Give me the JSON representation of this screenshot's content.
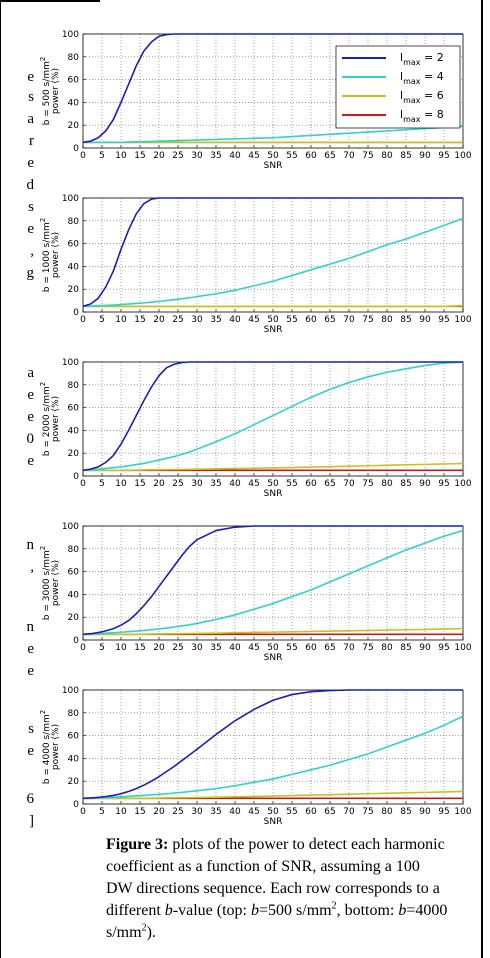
{
  "margin_fragments": [
    "e",
    "s",
    "a",
    "r",
    "e",
    "d",
    "s",
    "e",
    ",",
    "g",
    "a",
    "e",
    "e",
    "0",
    "e",
    "n",
    ",",
    "n",
    "e",
    "e",
    "s",
    "e",
    "6",
    "]"
  ],
  "caption": {
    "label": "Figure 3:",
    "line1": " plots of the power to detect each harmonic",
    "line2": "coefficient as a function of SNR, assuming a 100",
    "line3": "DW directions sequence. Each row corresponds to a",
    "line4a": "different ",
    "line4b": "b",
    "line4c": "-value (top: ",
    "line4d": "b",
    "line4e": "=500 s/mm",
    "line4f": "2",
    "line4g": ", bottom: ",
    "line4h": "b",
    "line4i": "=4000",
    "line5a": "s/mm",
    "line5b": "2",
    "line5c": ")."
  },
  "colors": {
    "lmax2": "#1a1fb5",
    "lmax4": "#2fd1cd",
    "lmax6": "#c9c31e",
    "lmax8": "#c21d1d",
    "grid": "#666666"
  },
  "chart_data": [
    {
      "type": "line",
      "ylabel_line1": "b = 500 s/mm",
      "ylabel_sup": "2",
      "ylabel_line2": "power (%)",
      "xlabel": "SNR",
      "xlim": [
        0,
        100
      ],
      "ylim": [
        0,
        100
      ],
      "xticks": [
        0,
        5,
        10,
        15,
        20,
        25,
        30,
        35,
        40,
        45,
        50,
        55,
        60,
        65,
        70,
        75,
        80,
        85,
        90,
        95,
        100
      ],
      "yticks": [
        0,
        20,
        40,
        60,
        80,
        100
      ],
      "grid": true,
      "legend": {
        "placement": "top-right",
        "entries": [
          {
            "base": "l",
            "sub": "max",
            "rest": " = 2"
          },
          {
            "base": "l",
            "sub": "max",
            "rest": " = 4"
          },
          {
            "base": "l",
            "sub": "max",
            "rest": " = 6"
          },
          {
            "base": "l",
            "sub": "max",
            "rest": " = 8"
          }
        ]
      },
      "x": [
        0,
        2,
        4,
        6,
        8,
        10,
        12,
        14,
        16,
        18,
        20,
        22,
        24,
        26,
        28,
        30,
        35,
        40,
        45,
        50,
        55,
        60,
        65,
        70,
        75,
        80,
        85,
        90,
        95,
        100
      ],
      "series": [
        {
          "key": "lmax2",
          "values": [
            5,
            6,
            9,
            15,
            25,
            40,
            56,
            72,
            85,
            93,
            98,
            99.5,
            100,
            100,
            100,
            100,
            100,
            100,
            100,
            100,
            100,
            100,
            100,
            100,
            100,
            100,
            100,
            100,
            100,
            100
          ]
        },
        {
          "key": "lmax4",
          "values": [
            5,
            5,
            5,
            5,
            5,
            5,
            5.2,
            5.4,
            5.6,
            5.8,
            6,
            6.2,
            6.4,
            6.6,
            6.8,
            7,
            7.5,
            8,
            8.5,
            9,
            10,
            11,
            12,
            13,
            14,
            15,
            16,
            17,
            18,
            19
          ]
        },
        {
          "key": "lmax6",
          "values": [
            5,
            5,
            5,
            5,
            5,
            5,
            5,
            5,
            5,
            5,
            5,
            5,
            5,
            5,
            5,
            5,
            5,
            5,
            5,
            5,
            5,
            5,
            5,
            5,
            5,
            5,
            5,
            5,
            5,
            5
          ]
        },
        {
          "key": "lmax8",
          "values": [
            5,
            5,
            5,
            5,
            5,
            5,
            5,
            5,
            5,
            5,
            5,
            5,
            5,
            5,
            5,
            5,
            5,
            5,
            5,
            5,
            5,
            5,
            5,
            5,
            5,
            5,
            5,
            5,
            5,
            5
          ]
        }
      ]
    },
    {
      "type": "line",
      "ylabel_line1": "b = 1000 s/mm",
      "ylabel_sup": "2",
      "ylabel_line2": "power (%)",
      "xlabel": "SNR",
      "xlim": [
        0,
        100
      ],
      "ylim": [
        0,
        100
      ],
      "xticks": [
        0,
        5,
        10,
        15,
        20,
        25,
        30,
        35,
        40,
        45,
        50,
        55,
        60,
        65,
        70,
        75,
        80,
        85,
        90,
        95,
        100
      ],
      "yticks": [
        0,
        20,
        40,
        60,
        80,
        100
      ],
      "grid": true,
      "x": [
        0,
        2,
        4,
        6,
        8,
        10,
        12,
        14,
        16,
        18,
        20,
        22,
        24,
        26,
        28,
        30,
        35,
        40,
        45,
        50,
        55,
        60,
        65,
        70,
        75,
        80,
        85,
        90,
        95,
        100
      ],
      "series": [
        {
          "key": "lmax2",
          "values": [
            5,
            7,
            12,
            22,
            36,
            55,
            72,
            86,
            95,
            99,
            100,
            100,
            100,
            100,
            100,
            100,
            100,
            100,
            100,
            100,
            100,
            100,
            100,
            100,
            100,
            100,
            100,
            100,
            100,
            100
          ]
        },
        {
          "key": "lmax4",
          "values": [
            5,
            5.2,
            5.5,
            5.8,
            6.1,
            6.5,
            7,
            7.5,
            8,
            8.6,
            9.2,
            10,
            10.8,
            11.6,
            12.5,
            13.5,
            16,
            19,
            23,
            27,
            32,
            37,
            42,
            47,
            53,
            59,
            64,
            70,
            76,
            82
          ]
        },
        {
          "key": "lmax6",
          "values": [
            5,
            5,
            5,
            5,
            5,
            5,
            5,
            5,
            5,
            5,
            5,
            5,
            5,
            5,
            5,
            5,
            5,
            5,
            5,
            5,
            5,
            5,
            5,
            5,
            5,
            5,
            5,
            5,
            5,
            5.5
          ]
        },
        {
          "key": "lmax8",
          "values": [
            5,
            5,
            5,
            5,
            5,
            5,
            5,
            5,
            5,
            5,
            5,
            5,
            5,
            5,
            5,
            5,
            5,
            5,
            5,
            5,
            5,
            5,
            5,
            5,
            5,
            5,
            5,
            5,
            5,
            5
          ]
        }
      ]
    },
    {
      "type": "line",
      "ylabel_line1": "b = 2000 s/mm",
      "ylabel_sup": "2",
      "ylabel_line2": "power (%)",
      "xlabel": "SNR",
      "xlim": [
        0,
        100
      ],
      "ylim": [
        0,
        100
      ],
      "xticks": [
        0,
        5,
        10,
        15,
        20,
        25,
        30,
        35,
        40,
        45,
        50,
        55,
        60,
        65,
        70,
        75,
        80,
        85,
        90,
        95,
        100
      ],
      "yticks": [
        0,
        20,
        40,
        60,
        80,
        100
      ],
      "grid": true,
      "x": [
        0,
        2,
        4,
        6,
        8,
        10,
        12,
        14,
        16,
        18,
        20,
        22,
        24,
        26,
        28,
        30,
        35,
        40,
        45,
        50,
        55,
        60,
        65,
        70,
        75,
        80,
        85,
        90,
        95,
        100
      ],
      "series": [
        {
          "key": "lmax2",
          "values": [
            5,
            6,
            8,
            12,
            18,
            28,
            40,
            53,
            66,
            78,
            88,
            95,
            98,
            99.5,
            100,
            100,
            100,
            100,
            100,
            100,
            100,
            100,
            100,
            100,
            100,
            100,
            100,
            100,
            100,
            100
          ]
        },
        {
          "key": "lmax4",
          "values": [
            5,
            5.5,
            6,
            6.6,
            7.3,
            8,
            9,
            10,
            11,
            12.5,
            14,
            15.5,
            17,
            19,
            21,
            23.5,
            30,
            37,
            45,
            53,
            61,
            69,
            76,
            82,
            87,
            91,
            94,
            97,
            99,
            100
          ]
        },
        {
          "key": "lmax6",
          "values": [
            5,
            5,
            5,
            5,
            5,
            5,
            5.1,
            5.2,
            5.3,
            5.4,
            5.5,
            5.6,
            5.7,
            5.8,
            5.9,
            6,
            6.2,
            6.5,
            6.8,
            7.1,
            7.4,
            7.8,
            8.2,
            8.6,
            9,
            9.4,
            9.8,
            10.2,
            10.6,
            11
          ]
        },
        {
          "key": "lmax8",
          "values": [
            5,
            5,
            5,
            5,
            5,
            5,
            5,
            5,
            5,
            5,
            5,
            5,
            5,
            5,
            5,
            5,
            5,
            5,
            5,
            5,
            5,
            5,
            5,
            5,
            5,
            5,
            5,
            5,
            5,
            5
          ]
        }
      ]
    },
    {
      "type": "line",
      "ylabel_line1": "b = 3000 s/mm",
      "ylabel_sup": "2",
      "ylabel_line2": "power (%)",
      "xlabel": "SNR",
      "xlim": [
        0,
        100
      ],
      "ylim": [
        0,
        100
      ],
      "xticks": [
        0,
        5,
        10,
        15,
        20,
        25,
        30,
        35,
        40,
        45,
        50,
        55,
        60,
        65,
        70,
        75,
        80,
        85,
        90,
        95,
        100
      ],
      "yticks": [
        0,
        20,
        40,
        60,
        80,
        100
      ],
      "grid": true,
      "x": [
        0,
        2,
        4,
        6,
        8,
        10,
        12,
        14,
        16,
        18,
        20,
        22,
        24,
        26,
        28,
        30,
        35,
        40,
        45,
        50,
        55,
        60,
        65,
        70,
        75,
        80,
        85,
        90,
        95,
        100
      ],
      "series": [
        {
          "key": "lmax2",
          "values": [
            5,
            5.5,
            6.5,
            8,
            10,
            13,
            17,
            23,
            30,
            38,
            47,
            56,
            65,
            74,
            82,
            88,
            96,
            99,
            100,
            100,
            100,
            100,
            100,
            100,
            100,
            100,
            100,
            100,
            100,
            100
          ]
        },
        {
          "key": "lmax4",
          "values": [
            5,
            5.3,
            5.6,
            6,
            6.4,
            6.8,
            7.3,
            7.8,
            8.4,
            9,
            9.7,
            10.5,
            11.4,
            12.3,
            13.3,
            14.5,
            18,
            22,
            27,
            32,
            38,
            44,
            51,
            58,
            65,
            72,
            79,
            85,
            91,
            96
          ]
        },
        {
          "key": "lmax6",
          "values": [
            5,
            5,
            5,
            5,
            5,
            5,
            5,
            5,
            5.1,
            5.2,
            5.3,
            5.4,
            5.5,
            5.6,
            5.7,
            5.8,
            6,
            6.3,
            6.6,
            6.9,
            7.2,
            7.5,
            7.8,
            8.1,
            8.4,
            8.7,
            9,
            9.3,
            9.6,
            10
          ]
        },
        {
          "key": "lmax8",
          "values": [
            5,
            5,
            5,
            5,
            5,
            5,
            5,
            5,
            5,
            5,
            5,
            5,
            5,
            5,
            5,
            5,
            5,
            5,
            5,
            5,
            5,
            5,
            5,
            5,
            5,
            5,
            5,
            5,
            5,
            5
          ]
        }
      ]
    },
    {
      "type": "line",
      "ylabel_line1": "b = 4000 s/mm",
      "ylabel_sup": "2",
      "ylabel_line2": "power (%)",
      "xlabel": "SNR",
      "xlim": [
        0,
        100
      ],
      "ylim": [
        0,
        100
      ],
      "xticks": [
        0,
        5,
        10,
        15,
        20,
        25,
        30,
        35,
        40,
        45,
        50,
        55,
        60,
        65,
        70,
        75,
        80,
        85,
        90,
        95,
        100
      ],
      "yticks": [
        0,
        20,
        40,
        60,
        80,
        100
      ],
      "grid": true,
      "x": [
        0,
        2,
        4,
        6,
        8,
        10,
        12,
        14,
        16,
        18,
        20,
        22,
        24,
        26,
        28,
        30,
        35,
        40,
        45,
        50,
        55,
        60,
        65,
        70,
        75,
        80,
        85,
        90,
        95,
        100
      ],
      "series": [
        {
          "key": "lmax2",
          "values": [
            5,
            5.3,
            5.8,
            6.5,
            7.5,
            9,
            11,
            13.5,
            16.5,
            20,
            24,
            28.5,
            33,
            38,
            43,
            48,
            61,
            73,
            83,
            91,
            96,
            98.5,
            99.5,
            100,
            100,
            100,
            100,
            100,
            100,
            100
          ]
        },
        {
          "key": "lmax4",
          "values": [
            5,
            5.2,
            5.4,
            5.7,
            6,
            6.3,
            6.7,
            7.1,
            7.5,
            8,
            8.5,
            9,
            9.6,
            10.2,
            10.9,
            11.6,
            13.5,
            16,
            19,
            22,
            26,
            30,
            34,
            39,
            44,
            50,
            56,
            62,
            69,
            77
          ]
        },
        {
          "key": "lmax6",
          "values": [
            5,
            5,
            5,
            5,
            5,
            5,
            5,
            5,
            5,
            5.1,
            5.2,
            5.3,
            5.4,
            5.5,
            5.6,
            5.7,
            6,
            6.3,
            6.6,
            7,
            7.4,
            7.8,
            8.2,
            8.6,
            9,
            9.4,
            9.8,
            10.2,
            10.6,
            11
          ]
        },
        {
          "key": "lmax8",
          "values": [
            5,
            5,
            5,
            5,
            5,
            5,
            5,
            5,
            5,
            5,
            5,
            5,
            5,
            5,
            5,
            5,
            5,
            5,
            5,
            5,
            5,
            5,
            5,
            5,
            5,
            5,
            5,
            5,
            5,
            5
          ]
        }
      ]
    }
  ]
}
